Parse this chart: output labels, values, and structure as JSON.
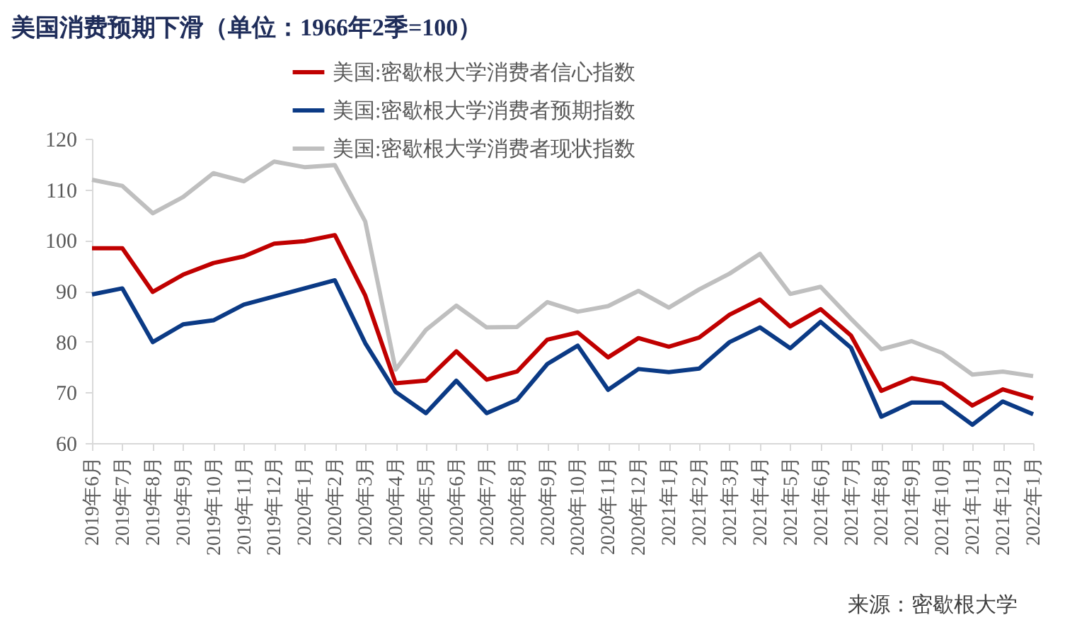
{
  "chart_data": {
    "type": "line",
    "title": "美国消费预期下滑（单位：1966年2季=100）",
    "categories": [
      "2019年6月",
      "2019年7月",
      "2019年8月",
      "2019年9月",
      "2019年10月",
      "2019年11月",
      "2019年12月",
      "2020年1月",
      "2020年2月",
      "2020年3月",
      "2020年4月",
      "2020年5月",
      "2020年6月",
      "2020年7月",
      "2020年8月",
      "2020年9月",
      "2020年10月",
      "2020年11月",
      "2020年12月",
      "2021年1月",
      "2021年2月",
      "2021年3月",
      "2021年4月",
      "2021年5月",
      "2021年6月",
      "2021年7月",
      "2021年8月",
      "2021年9月",
      "2021年10月",
      "2021年11月",
      "2021年12月",
      "2022年1月"
    ],
    "series": [
      {
        "name": "美国:密歇根大学消费者信心指数",
        "color": "#c00000",
        "values": [
          98.4,
          98.4,
          89.8,
          93.2,
          95.5,
          96.8,
          99.3,
          99.8,
          101.0,
          89.1,
          71.8,
          72.3,
          78.1,
          72.5,
          74.1,
          80.4,
          81.8,
          76.9,
          80.7,
          79.0,
          80.8,
          85.3,
          88.3,
          83.0,
          86.4,
          81.2,
          70.3,
          72.8,
          71.7,
          67.4,
          70.6,
          68.8
        ]
      },
      {
        "name": "美国:密歇根大学消费者预期指数",
        "color": "#0b3a85",
        "values": [
          89.3,
          90.5,
          79.9,
          83.4,
          84.2,
          87.3,
          88.9,
          90.5,
          92.1,
          79.7,
          70.1,
          65.9,
          72.3,
          65.9,
          68.5,
          75.6,
          79.2,
          70.5,
          74.6,
          74.0,
          74.7,
          79.9,
          82.8,
          78.7,
          83.9,
          78.8,
          65.2,
          68.0,
          68.0,
          63.6,
          68.2,
          65.7
        ]
      },
      {
        "name": "美国:密歇根大学消费者现状指数",
        "color": "#bfbfbf",
        "values": [
          111.9,
          110.7,
          105.3,
          108.5,
          113.2,
          111.6,
          115.5,
          114.4,
          114.8,
          103.7,
          74.5,
          82.3,
          87.1,
          82.8,
          82.9,
          87.8,
          85.9,
          87.0,
          90.0,
          86.7,
          90.3,
          93.4,
          97.3,
          89.4,
          90.8,
          84.5,
          78.5,
          80.1,
          77.8,
          73.5,
          74.1,
          73.2
        ]
      }
    ],
    "ylim": [
      60,
      120
    ],
    "yticks": [
      60,
      70,
      80,
      90,
      100,
      110,
      120
    ],
    "grid": false,
    "legend": "top",
    "marker": "none",
    "line_style": "solid",
    "annotations": [
      "来源：密歇根大学"
    ]
  }
}
